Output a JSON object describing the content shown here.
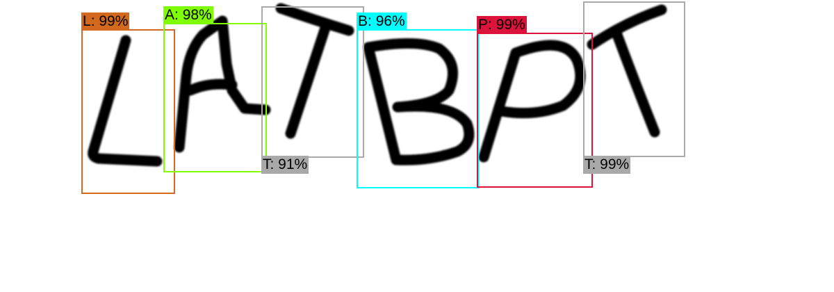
{
  "detections": [
    {
      "letter": "L",
      "confidence": "99%",
      "color": "#d2691e"
    },
    {
      "letter": "A",
      "confidence": "98%",
      "color": "#7fff00"
    },
    {
      "letter": "T",
      "confidence": "91%",
      "color": "#a9a9a9"
    },
    {
      "letter": "B",
      "confidence": "96%",
      "color": "#00ffff"
    },
    {
      "letter": "P",
      "confidence": "99%",
      "color": "#dc143c"
    },
    {
      "letter": "T",
      "confidence": "99%",
      "color": "#a9a9a9"
    }
  ]
}
